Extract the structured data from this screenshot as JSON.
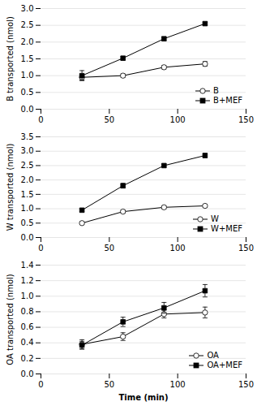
{
  "chart_data": [
    {
      "type": "line",
      "ylabel": "B transported (nmol)",
      "x": [
        30,
        60,
        90,
        120
      ],
      "xlim": [
        0,
        150
      ],
      "xticks": [
        0,
        50,
        100,
        150
      ],
      "ylim": [
        0,
        3.0
      ],
      "yticks": [
        {
          "value": 0,
          "label": "0.0"
        },
        0.5,
        {
          "value": 1.0,
          "label": "1.0"
        },
        1.5,
        {
          "value": 2.0,
          "label": "2.0"
        },
        2.5,
        {
          "value": 3.0,
          "label": "3.0"
        }
      ],
      "grid": "y",
      "legend": "lower right",
      "series": [
        {
          "name": "B",
          "color": "black",
          "marker": "circle-open",
          "line_style": "solid",
          "values": [
            0.95,
            1.0,
            1.25,
            1.35
          ],
          "yerr": [
            0.08,
            0.05,
            0.05,
            0.07
          ]
        },
        {
          "name": "B+MEF",
          "color": "black",
          "marker": "square",
          "line_style": "solid",
          "values": [
            1.0,
            1.52,
            2.1,
            2.55
          ],
          "yerr": [
            0.15,
            0.05,
            0.05,
            0.04
          ]
        }
      ]
    },
    {
      "type": "line",
      "ylabel": "W transported (nmol)",
      "x": [
        30,
        60,
        90,
        120
      ],
      "xlim": [
        0,
        150
      ],
      "xticks": [
        0,
        50,
        100,
        150
      ],
      "ylim": [
        0,
        3.5
      ],
      "yticks": [
        {
          "value": 0,
          "label": "0.0"
        },
        0.5,
        {
          "value": 1.0,
          "label": "1.0"
        },
        1.5,
        {
          "value": 2.0,
          "label": "2.0"
        },
        2.5,
        {
          "value": 3.0,
          "label": "3.0"
        },
        3.5
      ],
      "grid": "y",
      "legend": "lower right",
      "series": [
        {
          "name": "W",
          "color": "black",
          "marker": "circle-open",
          "line_style": "solid",
          "values": [
            0.5,
            0.9,
            1.05,
            1.1
          ],
          "yerr": [
            0.05,
            0.05,
            0.05,
            0.05
          ]
        },
        {
          "name": "W+MEF",
          "color": "black",
          "marker": "square",
          "line_style": "solid",
          "values": [
            0.95,
            1.8,
            2.5,
            2.85
          ],
          "yerr": [
            0.05,
            0.08,
            0.05,
            0.07
          ]
        }
      ]
    },
    {
      "type": "line",
      "ylabel": "OA transported (nmol)",
      "xlabel": "Time (min)",
      "x": [
        30,
        60,
        90,
        120
      ],
      "xlim": [
        0,
        150
      ],
      "xticks": [
        0,
        50,
        100,
        150
      ],
      "ylim": [
        0,
        1.4
      ],
      "yticks": [
        {
          "value": 0,
          "label": "0.0"
        },
        0.2,
        0.4,
        0.6,
        0.8,
        {
          "value": 1.0,
          "label": "1.0"
        },
        1.2,
        1.4
      ],
      "grid": "y",
      "legend": "lower right",
      "series": [
        {
          "name": "OA",
          "color": "black",
          "marker": "circle-open",
          "line_style": "solid",
          "values": [
            0.38,
            0.48,
            0.77,
            0.79
          ],
          "yerr": [
            0.06,
            0.05,
            0.05,
            0.07
          ]
        },
        {
          "name": "OA+MEF",
          "color": "black",
          "marker": "square",
          "line_style": "solid",
          "values": [
            0.37,
            0.67,
            0.85,
            1.07
          ],
          "yerr": [
            0.05,
            0.06,
            0.07,
            0.08
          ]
        }
      ]
    }
  ]
}
